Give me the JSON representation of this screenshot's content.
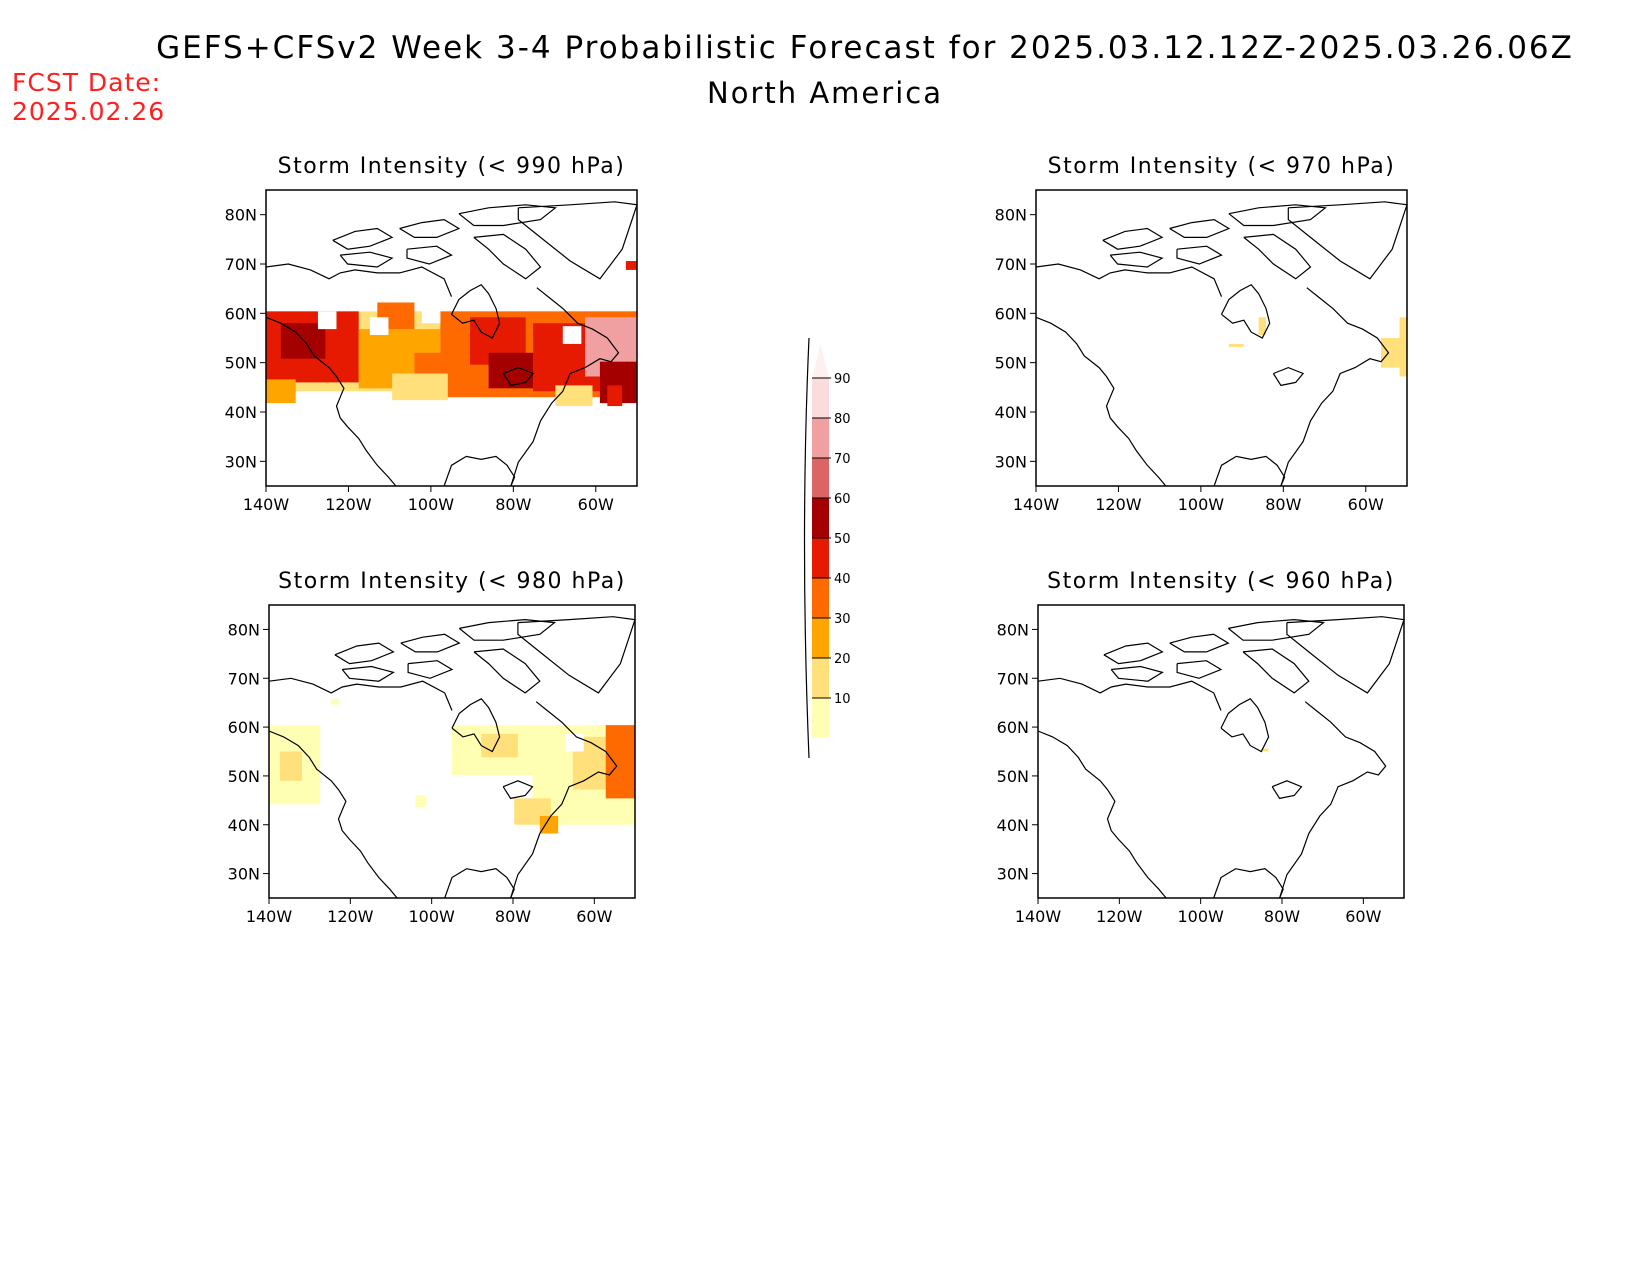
{
  "header": {
    "title": "GEFS+CFSv2 Week 3-4 Probabilistic Forecast for 2025.03.12.12Z-2025.03.26.06Z",
    "region": "North America",
    "fcst_label": "FCST Date:",
    "fcst_date": "2025.02.26"
  },
  "panels": [
    {
      "id": "990",
      "title": "Storm Intensity (< 990 hPa)",
      "coverage": "widespread"
    },
    {
      "id": "970",
      "title": "Storm Intensity (< 970 hPa)",
      "coverage": "sparse"
    },
    {
      "id": "980",
      "title": "Storm Intensity (< 980 hPa)",
      "coverage": "moderate"
    },
    {
      "id": "960",
      "title": "Storm Intensity (< 960 hPa)",
      "coverage": "minimal"
    }
  ],
  "axes": {
    "lon_ticks": [
      "140W",
      "120W",
      "100W",
      "80W",
      "60W"
    ],
    "lat_ticks": [
      "80N",
      "70N",
      "60N",
      "50N",
      "40N",
      "30N"
    ]
  },
  "colorbar": {
    "ticks": [
      "90",
      "80",
      "70",
      "60",
      "50",
      "40",
      "30",
      "20",
      "10"
    ],
    "colors": [
      "#ffffb4",
      "#ffe07a",
      "#ffa500",
      "#ff6a00",
      "#e61a00",
      "#a50000",
      "#dc6464",
      "#f0a0a0",
      "#fadcdc",
      "#fff0f0"
    ]
  },
  "colors": {
    "title": "#000000",
    "fcst": "#ff2020"
  }
}
